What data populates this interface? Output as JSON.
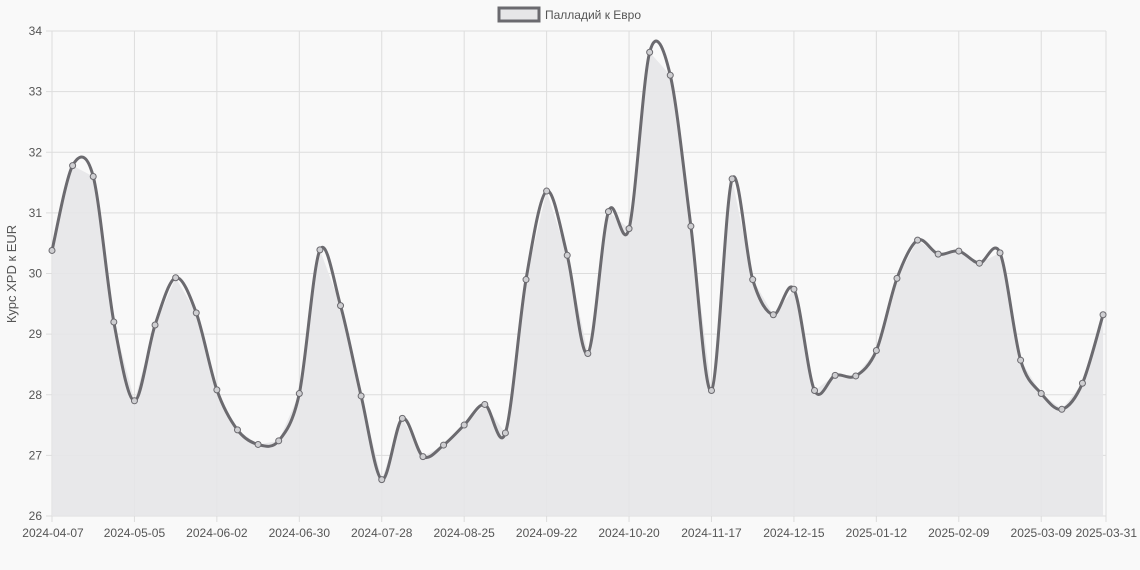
{
  "chart_data": {
    "type": "line",
    "title": "",
    "xlabel": "",
    "ylabel": "Курс XPD к EUR",
    "ylim": [
      26,
      34
    ],
    "yticks": [
      26,
      27,
      28,
      29,
      30,
      31,
      32,
      33,
      34
    ],
    "xticks": [
      "2024-04-07",
      "2024-05-05",
      "2024-06-02",
      "2024-06-30",
      "2024-07-28",
      "2024-08-25",
      "2024-09-22",
      "2024-10-20",
      "2024-11-17",
      "2024-12-15",
      "2025-01-12",
      "2025-02-09",
      "2025-03-09",
      "2025-03-31"
    ],
    "grid": true,
    "filled": true,
    "legend_position": "top-center",
    "colors": {
      "line": "#6b6a6f",
      "fill": "#e6e6e8",
      "point_fill": "#cfcfd2",
      "background": "#f9f9f9"
    },
    "series": [
      {
        "name": "Палладий к Евро",
        "x": [
          "2024-04-07",
          "2024-04-14",
          "2024-04-21",
          "2024-04-28",
          "2024-05-05",
          "2024-05-12",
          "2024-05-19",
          "2024-05-26",
          "2024-06-02",
          "2024-06-09",
          "2024-06-16",
          "2024-06-23",
          "2024-06-30",
          "2024-07-07",
          "2024-07-14",
          "2024-07-21",
          "2024-07-28",
          "2024-08-04",
          "2024-08-11",
          "2024-08-18",
          "2024-08-25",
          "2024-09-01",
          "2024-09-08",
          "2024-09-15",
          "2024-09-22",
          "2024-09-29",
          "2024-10-06",
          "2024-10-13",
          "2024-10-20",
          "2024-10-27",
          "2024-11-03",
          "2024-11-10",
          "2024-11-17",
          "2024-11-24",
          "2024-12-01",
          "2024-12-08",
          "2024-12-15",
          "2024-12-22",
          "2024-12-29",
          "2025-01-05",
          "2025-01-12",
          "2025-01-19",
          "2025-01-26",
          "2025-02-02",
          "2025-02-09",
          "2025-02-16",
          "2025-02-23",
          "2025-03-02",
          "2025-03-09",
          "2025-03-16",
          "2025-03-23",
          "2025-03-30"
        ],
        "values": [
          30.38,
          31.78,
          31.6,
          29.2,
          27.9,
          29.15,
          29.93,
          29.35,
          28.08,
          27.42,
          27.18,
          27.24,
          28.02,
          30.39,
          29.47,
          27.98,
          26.6,
          27.61,
          26.98,
          27.17,
          27.5,
          27.84,
          27.37,
          29.9,
          31.36,
          30.3,
          28.68,
          31.02,
          30.74,
          33.65,
          33.27,
          30.78,
          28.07,
          31.56,
          29.9,
          29.32,
          29.74,
          28.07,
          28.32,
          28.31,
          28.73,
          29.92,
          30.55,
          30.32,
          30.37,
          30.17,
          30.34,
          28.57,
          28.02,
          27.76,
          28.19,
          29.32
        ]
      }
    ]
  }
}
